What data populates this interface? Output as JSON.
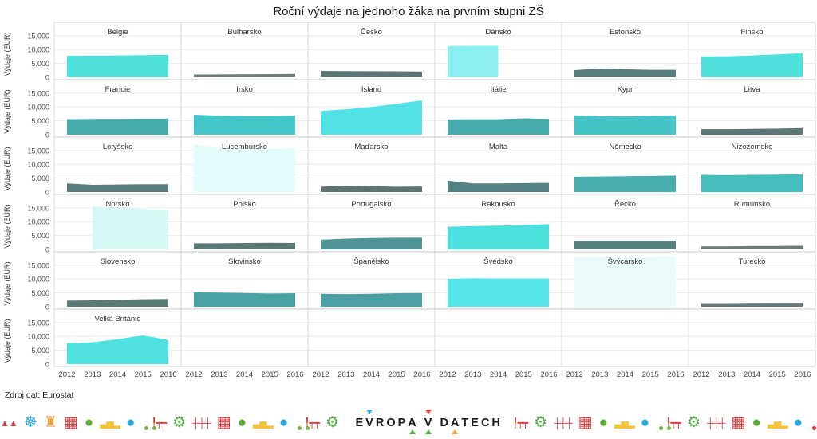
{
  "title": "Roční výdaje na jednoho žáka na prvním stupni ZŠ",
  "source": "Zdroj dat: Eurostat",
  "y_axis": {
    "label": "Výdaje (EUR)",
    "ticks": [
      "15,000",
      "10,000",
      "5,000",
      "0"
    ]
  },
  "x_axis": {
    "ticks": [
      "2012",
      "2013",
      "2014",
      "2015",
      "2016"
    ]
  },
  "chart_data": {
    "type": "area",
    "x": [
      2012,
      2013,
      2014,
      2015,
      2016
    ],
    "xlabel": "",
    "ylabel": "Výdaje (EUR)",
    "ylim": [
      0,
      20000
    ],
    "yticks": [
      0,
      5000,
      10000,
      15000
    ],
    "grid": true,
    "layout": {
      "rows": 6,
      "cols": 6
    },
    "facets": [
      {
        "name": "Belgie",
        "color": "#4ee0da",
        "values": [
          7800,
          7850,
          7900,
          8000,
          8100
        ]
      },
      {
        "name": "Bulharsko",
        "color": "#6e7b7b",
        "values": [
          1000,
          1050,
          1100,
          1150,
          1200
        ]
      },
      {
        "name": "Česko",
        "color": "#5b7676",
        "values": [
          2300,
          2250,
          2200,
          2150,
          2100
        ]
      },
      {
        "name": "Dánsko",
        "color": "#8ceef0",
        "values": [
          11300,
          11400,
          11400,
          null,
          null
        ]
      },
      {
        "name": "Estonsko",
        "color": "#587e7e",
        "values": [
          2600,
          3200,
          2900,
          2700,
          2700
        ]
      },
      {
        "name": "Finsko",
        "color": "#4de0dd",
        "values": [
          7500,
          7600,
          7900,
          8300,
          8700
        ]
      },
      {
        "name": "Francie",
        "color": "#47acae",
        "values": [
          5600,
          5700,
          5700,
          5800,
          5800
        ]
      },
      {
        "name": "Irsko",
        "color": "#43c6c8",
        "values": [
          7200,
          6900,
          6700,
          6700,
          6900
        ]
      },
      {
        "name": "Island",
        "color": "#52e2e6",
        "values": [
          8600,
          9200,
          10000,
          11200,
          12400
        ]
      },
      {
        "name": "Itálie",
        "color": "#48abad",
        "values": [
          5500,
          5600,
          5600,
          5900,
          5700
        ]
      },
      {
        "name": "Kypr",
        "color": "#44c4c6",
        "values": [
          7000,
          6700,
          6600,
          6800,
          6900
        ]
      },
      {
        "name": "Litva",
        "color": "#5b7676",
        "values": [
          2000,
          2000,
          2100,
          2200,
          2400
        ]
      },
      {
        "name": "Lotyšsko",
        "color": "#597d7d",
        "values": [
          3100,
          2600,
          2700,
          2800,
          2800
        ]
      },
      {
        "name": "Lucembursko",
        "color": "#e3fbfa",
        "values": [
          17300,
          16200,
          15400,
          15500,
          15900
        ]
      },
      {
        "name": "Maďarsko",
        "color": "#5e7474",
        "values": [
          1900,
          2300,
          2100,
          1900,
          2000
        ]
      },
      {
        "name": "Malta",
        "color": "#548383",
        "values": [
          4100,
          3100,
          3100,
          3200,
          3300
        ]
      },
      {
        "name": "Německo",
        "color": "#47aeb0",
        "values": [
          5500,
          5600,
          5700,
          5800,
          5900
        ]
      },
      {
        "name": "Nizozemsko",
        "color": "#45bcbe",
        "values": [
          6200,
          6100,
          6200,
          6300,
          6400
        ]
      },
      {
        "name": "Norsko",
        "color": "#d6f9f8",
        "values": [
          null,
          15600,
          15100,
          14600,
          14200
        ]
      },
      {
        "name": "Polsko",
        "color": "#5b7878",
        "values": [
          2200,
          2200,
          2300,
          2400,
          2300
        ]
      },
      {
        "name": "Portugalsko",
        "color": "#4f9595",
        "values": [
          3500,
          3900,
          4100,
          4200,
          4200
        ]
      },
      {
        "name": "Rakousko",
        "color": "#4be0de",
        "values": [
          8200,
          8400,
          8600,
          8800,
          9100
        ]
      },
      {
        "name": "Řecko",
        "color": "#567f7f",
        "values": [
          3100,
          3100,
          3100,
          3100,
          3100
        ]
      },
      {
        "name": "Rumunsko",
        "color": "#6d7a7a",
        "values": [
          1100,
          1100,
          1200,
          1200,
          1300
        ]
      },
      {
        "name": "Slovensko",
        "color": "#5a7979",
        "values": [
          2200,
          2300,
          2500,
          2700,
          2800
        ]
      },
      {
        "name": "Slovinsko",
        "color": "#49a3a5",
        "values": [
          5300,
          5100,
          5000,
          4800,
          4900
        ]
      },
      {
        "name": "Španělsko",
        "color": "#4aa0a3",
        "values": [
          4700,
          4600,
          4700,
          4900,
          5000
        ]
      },
      {
        "name": "Švédsko",
        "color": "#54e3e6",
        "values": [
          10100,
          10300,
          10200,
          10200,
          10200
        ]
      },
      {
        "name": "Švýcarsko",
        "color": "#e9fcfb",
        "values": [
          18000,
          18050,
          18100,
          18150,
          18200
        ]
      },
      {
        "name": "Turecko",
        "color": "#697878",
        "values": [
          1300,
          1300,
          1350,
          1400,
          1400
        ]
      },
      {
        "name": "Velká Británie",
        "color": "#4fe0e0",
        "values": [
          7600,
          7900,
          9000,
          10400,
          8700
        ]
      }
    ]
  },
  "logo": {
    "parts": [
      {
        "t": "E"
      },
      {
        "t": "V",
        "tri_top": "#2aa9e0"
      },
      {
        "t": "R"
      },
      {
        "t": "O"
      },
      {
        "t": "P"
      },
      {
        "t": "A",
        "tri_bottom": "#4caf3e"
      },
      {
        "gap": true
      },
      {
        "t": "V",
        "tri_top": "#e23b3b",
        "tri_bottom": "#4caf3e"
      },
      {
        "gap": true
      },
      {
        "t": "D"
      },
      {
        "t": "A",
        "tri_bottom": "#f0a63c"
      },
      {
        "t": "T"
      },
      {
        "t": "E"
      },
      {
        "t": "C"
      },
      {
        "t": "H"
      }
    ]
  },
  "footer_icons": {
    "left": [
      {
        "name": "mountains-icon",
        "glyph": "▲▲",
        "color": "#d94040",
        "small": true
      },
      {
        "name": "ferris-wheel-icon",
        "glyph": "☸",
        "color": "#2aa9e0"
      },
      {
        "name": "tower-icon",
        "glyph": "♜",
        "color": "#f2a03d"
      },
      {
        "name": "building-icon",
        "glyph": "▦",
        "color": "#d94040"
      },
      {
        "name": "globe-icon",
        "glyph": "●",
        "color": "#5aae35"
      },
      {
        "name": "skyline-icon",
        "glyph": "▃▅▂",
        "color": "#f2c43c",
        "small": true
      },
      {
        "name": "globe-icon",
        "glyph": "●",
        "color": "#2aa9e0"
      },
      {
        "name": "car-icon",
        "shape": "car",
        "color": "#6cb83f"
      },
      {
        "name": "streetlamp-bench-icon",
        "glyph": "╿┯┯",
        "color": "#d94040",
        "small": true
      },
      {
        "name": "gear-icon",
        "glyph": "⚙",
        "color": "#4caf3e"
      },
      {
        "name": "railway-icon",
        "glyph": "┼┼┼",
        "color": "#d94040",
        "small": true
      },
      {
        "name": "building-icon",
        "glyph": "▦",
        "color": "#d94040"
      },
      {
        "name": "globe-icon",
        "glyph": "●",
        "color": "#5aae35"
      },
      {
        "name": "skyline-icon",
        "glyph": "▃▅▂",
        "color": "#f2c43c",
        "small": true
      },
      {
        "name": "globe-icon",
        "glyph": "●",
        "color": "#2aa9e0"
      },
      {
        "name": "car-icon",
        "shape": "car",
        "color": "#6cb83f"
      },
      {
        "name": "streetlamp-bench-icon",
        "glyph": "╿┯┯",
        "color": "#d94040",
        "small": true
      },
      {
        "name": "gear-icon",
        "glyph": "⚙",
        "color": "#4caf3e"
      },
      {
        "name": "railway-icon",
        "glyph": "┼┼┼",
        "color": "#d94040",
        "small": true
      }
    ],
    "right": [
      {
        "name": "streetlamp-bench-icon",
        "glyph": "╿┯┯",
        "color": "#d94040",
        "small": true
      },
      {
        "name": "gear-icon",
        "glyph": "⚙",
        "color": "#4caf3e"
      },
      {
        "name": "railway-icon",
        "glyph": "┼┼┼",
        "color": "#d94040",
        "small": true
      },
      {
        "name": "building-icon",
        "glyph": "▦",
        "color": "#d94040"
      },
      {
        "name": "globe-icon",
        "glyph": "●",
        "color": "#5aae35"
      },
      {
        "name": "skyline-icon",
        "glyph": "▃▅▂",
        "color": "#f2c43c",
        "small": true
      },
      {
        "name": "globe-icon",
        "glyph": "●",
        "color": "#2aa9e0"
      },
      {
        "name": "car-icon",
        "shape": "car",
        "color": "#6cb83f"
      },
      {
        "name": "streetlamp-bench-icon",
        "glyph": "╿┯┯",
        "color": "#d94040",
        "small": true
      },
      {
        "name": "gear-icon",
        "glyph": "⚙",
        "color": "#4caf3e"
      },
      {
        "name": "railway-icon",
        "glyph": "┼┼┼",
        "color": "#d94040",
        "small": true
      },
      {
        "name": "building-icon",
        "glyph": "▦",
        "color": "#d94040"
      },
      {
        "name": "globe-icon",
        "glyph": "●",
        "color": "#5aae35"
      },
      {
        "name": "skyline-icon",
        "glyph": "▃▅▂",
        "color": "#f2c43c",
        "small": true
      },
      {
        "name": "globe-icon",
        "glyph": "●",
        "color": "#2aa9e0"
      },
      {
        "name": "car-icon",
        "shape": "car",
        "color": "#d94040"
      },
      {
        "name": "gear-icon",
        "glyph": "⚙",
        "color": "#4caf3e"
      }
    ]
  }
}
